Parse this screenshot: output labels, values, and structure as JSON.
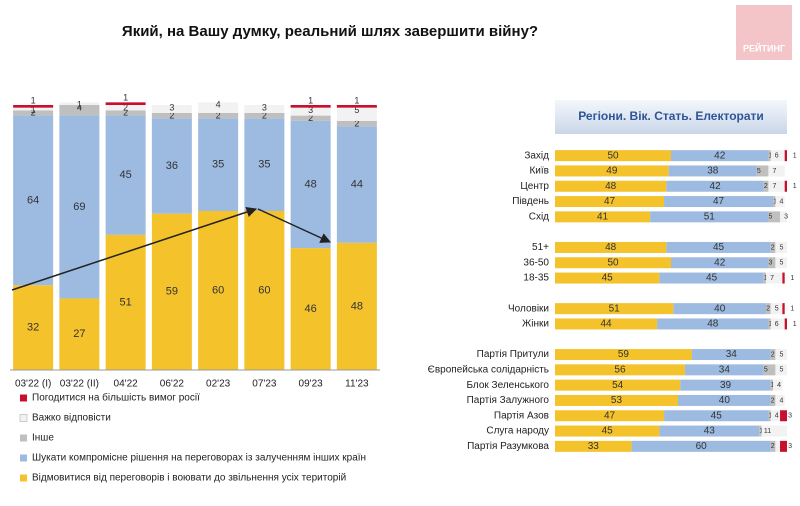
{
  "title": "Який, на Вашу думку, реальний шлях завершити війну?",
  "logo": "РЕЙТИНГ",
  "chart_data": [
    {
      "type": "stacked-column",
      "categories": [
        "03'22 (I)",
        "03'22 (II)",
        "04'22",
        "06'22",
        "02'23",
        "07'23",
        "09'23",
        "11'23"
      ],
      "ylim": [
        0,
        100
      ],
      "series": [
        {
          "name": "Відмовитися від переговорів і воювати до звільнення усіх територій",
          "color": "#f4c22b",
          "values": [
            32,
            27,
            51,
            59,
            60,
            60,
            46,
            48
          ]
        },
        {
          "name": "Шукати компромісне рішення на переговорах із залученням інших країн",
          "color": "#9dbbe0",
          "values": [
            64,
            69,
            45,
            36,
            35,
            35,
            48,
            44
          ]
        },
        {
          "name": "Інше",
          "color": "#bfbfbf",
          "values": [
            2,
            4,
            2,
            2,
            2,
            2,
            2,
            2
          ]
        },
        {
          "name": "Важко відповісти",
          "color": "#f2f2f2",
          "values": [
            1,
            1,
            2,
            3,
            4,
            3,
            3,
            5
          ]
        },
        {
          "name": "Погодитися на більшість вимог росії",
          "color": "#c8102e",
          "values": [
            1,
            null,
            1,
            null,
            null,
            null,
            1,
            1
          ]
        }
      ]
    },
    {
      "type": "stacked-bar",
      "subtitle": "Регіони. Вік. Стать. Електорати",
      "categories": [
        "Захід",
        "Київ",
        "Центр",
        "Південь",
        "Схід",
        null,
        "51+",
        "36-50",
        "18-35",
        null,
        "Чоловіки",
        "Жінки",
        null,
        "Партія Притули",
        "Європейська солідарність",
        "Блок Зеленського",
        "Партія Залужного",
        "Партія Азов",
        "Слуга народу",
        "Партія  Разумкова"
      ],
      "xlim": [
        0,
        100
      ],
      "series": [
        {
          "color": "#f4c22b",
          "values": [
            50,
            49,
            48,
            47,
            41,
            null,
            48,
            50,
            45,
            null,
            51,
            44,
            null,
            59,
            56,
            54,
            53,
            47,
            45,
            33
          ]
        },
        {
          "color": "#9dbbe0",
          "values": [
            42,
            38,
            42,
            47,
            51,
            null,
            45,
            42,
            45,
            null,
            40,
            48,
            null,
            34,
            34,
            39,
            40,
            45,
            43,
            60
          ]
        },
        {
          "color": "#bfbfbf",
          "values": [
            1,
            5,
            2,
            1,
            5,
            null,
            2,
            3,
            1,
            null,
            2,
            1,
            null,
            2,
            5,
            1,
            2,
            1,
            1,
            2
          ]
        },
        {
          "color": "#f2f2f2",
          "values": [
            6,
            7,
            7,
            4,
            3,
            null,
            5,
            5,
            7,
            null,
            5,
            6,
            null,
            5,
            5,
            4,
            4,
            4,
            11,
            2
          ]
        },
        {
          "color": "#c8102e",
          "values": [
            1,
            null,
            1,
            null,
            null,
            null,
            null,
            null,
            1,
            null,
            1,
            1,
            null,
            null,
            null,
            null,
            null,
            3,
            null,
            3
          ]
        }
      ]
    }
  ]
}
